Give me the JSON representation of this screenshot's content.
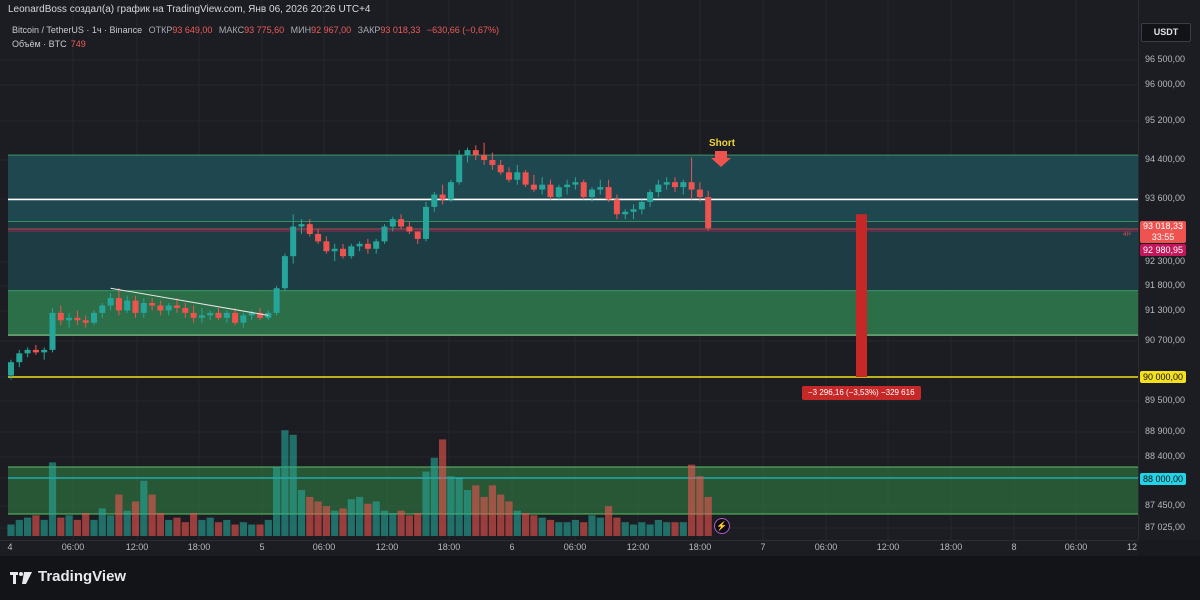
{
  "header": {
    "title": "LeonardBoss создал(а) график на TradingView.com, Янв 06, 2026 20:26 UTC+4"
  },
  "legend": {
    "symbol": "Bitcoin / TetherUS · 1ч · Binance",
    "open_label": "ОТКР",
    "open_value": "93 649,00",
    "high_label": "МАКС",
    "high_value": "93 775,60",
    "low_label": "МИН",
    "low_value": "92 967,00",
    "close_label": "ЗАКР",
    "close_value": "93 018,33",
    "change": "−630,66 (−0,67%)",
    "volume_label": "Объём · BTC",
    "volume_value": "749"
  },
  "currency": "USDT",
  "price_axis": {
    "ticks": [
      "96 500,00",
      "96 000,00",
      "95 200,00",
      "94 400,00",
      "93 600,00",
      "92 300,00",
      "91 800,00",
      "91 300,00",
      "90 700,00",
      "90 000,00",
      "89 500,00",
      "88 900,00",
      "88 400,00",
      "88 000,00",
      "87 450,00",
      "87 025,00"
    ],
    "current_price": "93 018,33",
    "countdown": "33:55",
    "line_price": "92 980,95",
    "level_90000": "90 000,00",
    "level_88000": "88 000,00"
  },
  "time_axis": {
    "ticks": [
      "4",
      "06:00",
      "12:00",
      "18:00",
      "5",
      "06:00",
      "12:00",
      "18:00",
      "6",
      "06:00",
      "12:00",
      "18:00",
      "7",
      "06:00",
      "12:00",
      "18:00",
      "8",
      "06:00",
      "12"
    ]
  },
  "annotations": {
    "short_label": "Short",
    "measure_label": "−3 296,16 (−3,53%) −329 616",
    "interval_marker": "4H"
  },
  "colors": {
    "up": "#26a69a",
    "down": "#ef5350",
    "zone_teal": "#1f4f57",
    "zone_green": "#2e7d4f",
    "yellow_line": "#f5e01e",
    "cyan_line": "#21d4e8",
    "measure": "#c62828"
  },
  "chart_data": {
    "type": "candlestick",
    "series": [
      {
        "name": "Bitcoin / TetherUS",
        "ohlc": [
          [
            90030,
            90350,
            89950,
            90300
          ],
          [
            90300,
            90550,
            90200,
            90480
          ],
          [
            90480,
            90600,
            90400,
            90550
          ],
          [
            90550,
            90650,
            90450,
            90500
          ],
          [
            90500,
            90600,
            90350,
            90550
          ],
          [
            90550,
            91400,
            90500,
            91300
          ],
          [
            91300,
            91450,
            91050,
            91150
          ],
          [
            91150,
            91300,
            91000,
            91200
          ],
          [
            91200,
            91350,
            91050,
            91150
          ],
          [
            91150,
            91250,
            91000,
            91100
          ],
          [
            91100,
            91350,
            91050,
            91300
          ],
          [
            91300,
            91500,
            91200,
            91450
          ],
          [
            91450,
            91700,
            91350,
            91600
          ],
          [
            91600,
            91800,
            91250,
            91350
          ],
          [
            91350,
            91650,
            91300,
            91550
          ],
          [
            91550,
            91650,
            91200,
            91300
          ],
          [
            91300,
            91600,
            91200,
            91500
          ],
          [
            91500,
            91600,
            91350,
            91450
          ],
          [
            91450,
            91550,
            91250,
            91350
          ],
          [
            91350,
            91500,
            91250,
            91450
          ],
          [
            91450,
            91600,
            91300,
            91400
          ],
          [
            91400,
            91500,
            91200,
            91300
          ],
          [
            91300,
            91450,
            91100,
            91200
          ],
          [
            91200,
            91400,
            91100,
            91250
          ],
          [
            91250,
            91350,
            91150,
            91300
          ],
          [
            91300,
            91400,
            91150,
            91200
          ],
          [
            91200,
            91350,
            91100,
            91300
          ],
          [
            91300,
            91400,
            91050,
            91100
          ],
          [
            91100,
            91300,
            91000,
            91250
          ],
          [
            91250,
            91350,
            91150,
            91300
          ],
          [
            91300,
            91400,
            91150,
            91200
          ],
          [
            91200,
            91350,
            91150,
            91300
          ],
          [
            91300,
            91850,
            91250,
            91800
          ],
          [
            91800,
            92500,
            91750,
            92450
          ],
          [
            92450,
            93300,
            92300,
            93050
          ],
          [
            93050,
            93200,
            92900,
            93100
          ],
          [
            93100,
            93200,
            92850,
            92900
          ],
          [
            92900,
            93000,
            92700,
            92750
          ],
          [
            92750,
            92850,
            92500,
            92550
          ],
          [
            92550,
            92700,
            92350,
            92600
          ],
          [
            92600,
            92700,
            92400,
            92450
          ],
          [
            92450,
            92700,
            92400,
            92650
          ],
          [
            92650,
            92750,
            92550,
            92700
          ],
          [
            92700,
            92800,
            92500,
            92600
          ],
          [
            92600,
            92800,
            92500,
            92750
          ],
          [
            92750,
            93100,
            92700,
            93050
          ],
          [
            93050,
            93250,
            92950,
            93200
          ],
          [
            93200,
            93300,
            93000,
            93050
          ],
          [
            93050,
            93150,
            92900,
            92950
          ],
          [
            92950,
            92950,
            92700,
            92800
          ],
          [
            92800,
            93550,
            92750,
            93450
          ],
          [
            93450,
            93750,
            93350,
            93700
          ],
          [
            93700,
            93900,
            93500,
            93600
          ],
          [
            93600,
            94000,
            93550,
            93950
          ],
          [
            93950,
            94600,
            93900,
            94500
          ],
          [
            94500,
            94650,
            94350,
            94600
          ],
          [
            94600,
            94700,
            94400,
            94500
          ],
          [
            94500,
            94750,
            94300,
            94400
          ],
          [
            94400,
            94550,
            94200,
            94300
          ],
          [
            94300,
            94400,
            94100,
            94150
          ],
          [
            94150,
            94250,
            93950,
            94000
          ],
          [
            94000,
            94300,
            93900,
            94150
          ],
          [
            94150,
            94200,
            93850,
            93900
          ],
          [
            93900,
            94100,
            93750,
            93800
          ],
          [
            93800,
            94050,
            93700,
            93900
          ],
          [
            93900,
            94000,
            93600,
            93650
          ],
          [
            93650,
            93900,
            93600,
            93850
          ],
          [
            93850,
            94000,
            93700,
            93900
          ],
          [
            93900,
            94050,
            93800,
            93950
          ],
          [
            93950,
            94000,
            93600,
            93650
          ],
          [
            93650,
            93850,
            93550,
            93800
          ],
          [
            93800,
            94000,
            93700,
            93850
          ],
          [
            93850,
            94000,
            93550,
            93600
          ],
          [
            93600,
            93700,
            93200,
            93300
          ],
          [
            93300,
            93400,
            93200,
            93350
          ],
          [
            93350,
            93500,
            93200,
            93400
          ],
          [
            93400,
            93600,
            93300,
            93550
          ],
          [
            93550,
            93800,
            93450,
            93750
          ],
          [
            93750,
            94000,
            93650,
            93900
          ],
          [
            93900,
            94050,
            93800,
            93950
          ],
          [
            93950,
            94050,
            93750,
            93850
          ],
          [
            93850,
            94000,
            93700,
            93950
          ],
          [
            93950,
            94450,
            93600,
            93800
          ],
          [
            93800,
            93950,
            93550,
            93649
          ],
          [
            93649,
            93775.6,
            92967,
            93018.33
          ]
        ]
      },
      {
        "name": "Объём · BTC",
        "values": [
          0.25,
          0.35,
          0.4,
          0.45,
          0.35,
          1.6,
          0.4,
          0.45,
          0.35,
          0.5,
          0.35,
          0.6,
          0.45,
          0.9,
          0.55,
          0.75,
          1.2,
          0.9,
          0.5,
          0.35,
          0.4,
          0.3,
          0.5,
          0.35,
          0.4,
          0.3,
          0.35,
          0.25,
          0.3,
          0.25,
          0.25,
          0.35,
          1.5,
          2.3,
          2.2,
          1.0,
          0.85,
          0.75,
          0.65,
          0.55,
          0.6,
          0.8,
          0.85,
          0.7,
          0.75,
          0.55,
          0.5,
          0.55,
          0.45,
          0.5,
          1.4,
          1.7,
          2.1,
          1.3,
          1.25,
          1.0,
          1.1,
          0.85,
          1.1,
          0.9,
          0.75,
          0.55,
          0.5,
          0.45,
          0.4,
          0.35,
          0.3,
          0.3,
          0.35,
          0.3,
          0.45,
          0.4,
          0.65,
          0.4,
          0.3,
          0.25,
          0.3,
          0.25,
          0.35,
          0.3,
          0.3,
          0.3,
          1.55,
          1.3,
          0.85
        ]
      }
    ],
    "zones": [
      {
        "from": 93150,
        "to": 94500,
        "color": "#1f4f57"
      },
      {
        "from": 91750,
        "to": 93150,
        "color": "#1d424a"
      },
      {
        "from": 90850,
        "to": 91750,
        "color": "#2e7d4f"
      }
    ],
    "lines": [
      {
        "price": 93600,
        "color": "#ffffff"
      },
      {
        "price": 90000,
        "color": "#f5e01e"
      }
    ],
    "trendline": {
      "from": [
        91800,
        12
      ],
      "to": [
        91250,
        31
      ]
    },
    "measure": {
      "from": 93300,
      "to": 90000,
      "label": "−3 296,16 (−3,53%) −329 616"
    }
  }
}
